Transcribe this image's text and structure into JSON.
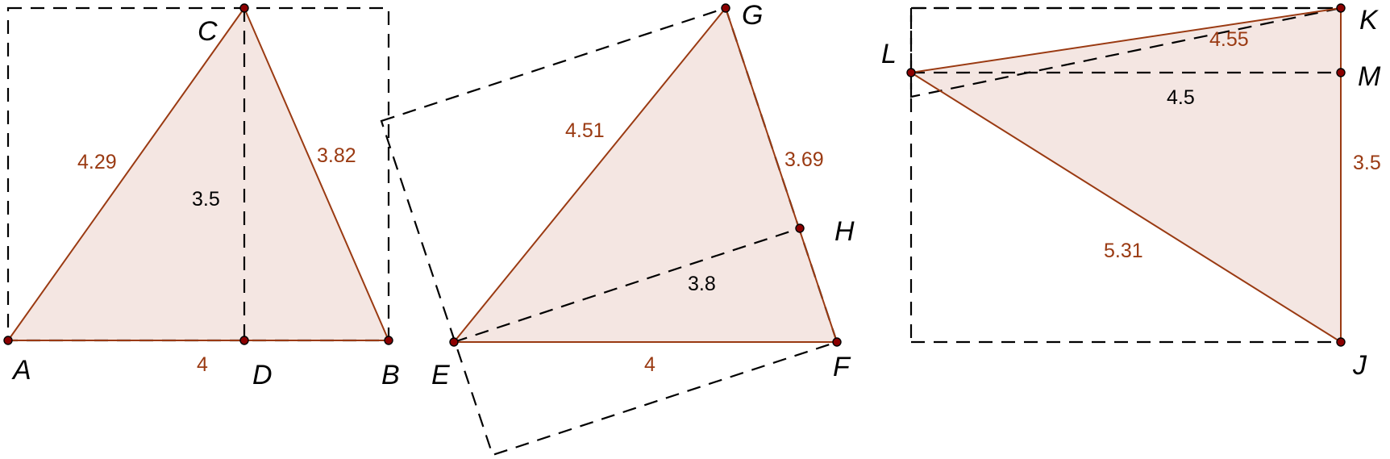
{
  "figures": [
    {
      "name": "triangle-abc",
      "points": {
        "A": "A",
        "B": "B",
        "C": "C",
        "D": "D"
      },
      "measures": {
        "AB": "4",
        "AC": "4.29",
        "BC": "3.82",
        "CD": "3.5"
      }
    },
    {
      "name": "triangle-efg",
      "points": {
        "E": "E",
        "F": "F",
        "G": "G",
        "H": "H"
      },
      "measures": {
        "EF": "4",
        "EG": "4.51",
        "FG": "3.69",
        "EH": "3.8"
      }
    },
    {
      "name": "triangle-jkl",
      "points": {
        "J": "J",
        "K": "K",
        "L": "L",
        "M": "M"
      },
      "measures": {
        "LK": "4.55",
        "LM": "4.5",
        "JK": "3.5",
        "LJ": "5.31"
      }
    }
  ],
  "colors": {
    "edge": "#9a3a12",
    "fill": "#f4e6e2",
    "point": "#8b0000",
    "dashed": "#000000"
  }
}
